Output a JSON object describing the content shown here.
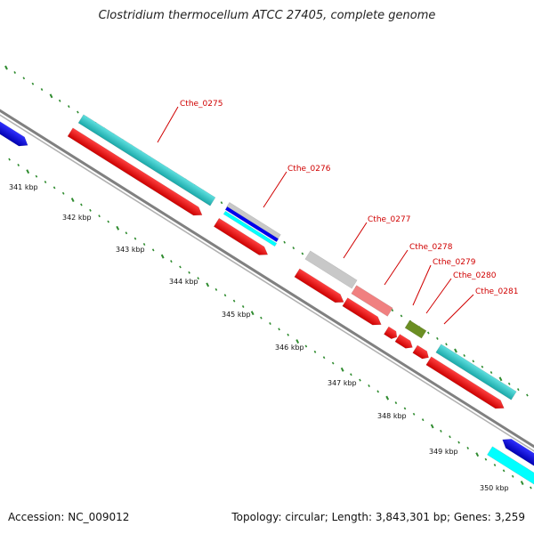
{
  "title": "Clostridium thermocellum ATCC 27405, complete genome",
  "footer": {
    "accession": "Accession: NC_009012",
    "topology": "Topology: circular; Length: 3,843,301 bp; Genes: 3,259"
  },
  "ticks": [
    "341 kbp",
    "342 kbp",
    "343 kbp",
    "344 kbp",
    "345 kbp",
    "346 kbp",
    "347 kbp",
    "348 kbp",
    "349 kbp",
    "350 kbp"
  ],
  "gene_labels": [
    "Cthe_0275",
    "Cthe_0276",
    "Cthe_0277",
    "Cthe_0278",
    "Cthe_0279",
    "Cthe_0280",
    "Cthe_0281"
  ],
  "colors": {
    "cds_red": "#ff0000",
    "cyan": "#22cccc",
    "bright_cyan": "#00ffff",
    "blue": "#0000ee",
    "grey": "#cccccc",
    "pink": "#f08080",
    "olive": "#6b8e23",
    "backbone": "#808080",
    "tick_green": "#2e8b2e",
    "label_red": "#d00000"
  }
}
